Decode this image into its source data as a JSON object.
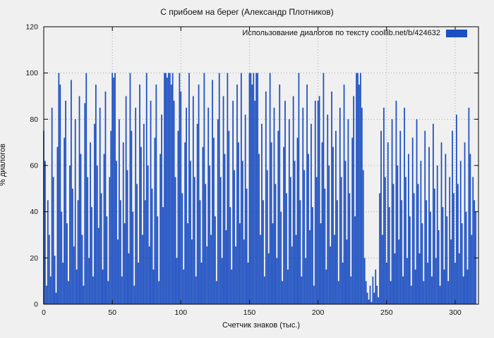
{
  "title": "С прибоем на берег (Александр Плотников)",
  "legend": {
    "label": "Использование диалогов по тексту  coollib.net/b/424632"
  },
  "colors": {
    "background": "#f0f0f0",
    "bar": "#1c4fc1",
    "axis": "#000000",
    "grid": "#9a9a9a"
  },
  "chart_data": {
    "type": "bar",
    "title": "С прибоем на берег (Александр Плотников)",
    "xlabel": "Счетчик знаков (тыс.)",
    "ylabel": "% диалогов",
    "xlim": [
      0,
      317
    ],
    "ylim": [
      0,
      120
    ],
    "x_ticks": [
      0,
      50,
      100,
      150,
      200,
      250,
      300
    ],
    "y_ticks": [
      0,
      20,
      40,
      60,
      80,
      100,
      120
    ],
    "grid": true,
    "legend_position": "top-right-inside",
    "x_start": 0,
    "x_step": 1,
    "values": [
      75,
      62,
      8,
      45,
      30,
      12,
      85,
      55,
      21,
      5,
      68,
      100,
      95,
      40,
      18,
      72,
      88,
      35,
      10,
      60,
      97,
      50,
      25,
      80,
      15,
      45,
      90,
      65,
      30,
      8,
      87,
      100,
      55,
      20,
      70,
      42,
      12,
      78,
      95,
      60,
      33,
      85,
      48,
      15,
      65,
      92,
      38,
      10,
      55,
      75,
      100,
      98,
      100,
      62,
      28,
      80,
      45,
      12,
      70,
      35,
      90,
      58,
      22,
      100,
      75,
      40,
      8,
      85,
      52,
      18,
      95,
      68,
      30,
      78,
      45,
      100,
      60,
      25,
      88,
      50,
      15,
      72,
      95,
      38,
      10,
      65,
      82,
      42,
      100,
      100,
      98,
      100,
      100,
      95,
      100,
      88,
      55,
      20,
      75,
      100,
      92,
      48,
      15,
      70,
      85,
      35,
      100,
      62,
      28,
      90,
      55,
      12,
      78,
      95,
      45,
      18,
      68,
      100,
      52,
      25,
      85,
      60,
      30,
      97,
      72,
      38,
      10,
      80,
      100,
      55,
      20,
      90,
      65,
      32,
      100,
      75,
      42,
      15,
      88,
      58,
      25,
      95,
      70,
      35,
      100,
      62,
      28,
      82,
      50,
      18,
      100,
      100,
      95,
      100,
      88,
      100,
      100,
      65,
      30,
      78,
      45,
      12,
      92,
      58,
      22,
      100,
      70,
      35,
      85,
      52,
      20,
      75,
      95,
      40,
      10,
      68,
      88,
      48,
      15,
      80,
      55,
      25,
      90,
      62,
      30,
      72,
      100,
      45,
      12,
      85,
      58,
      20,
      95,
      65,
      32,
      78,
      42,
      8,
      88,
      55,
      88,
      90,
      35,
      70,
      100,
      50,
      15,
      82,
      60,
      25,
      92,
      68,
      30,
      75,
      45,
      10,
      85,
      55,
      18,
      95,
      62,
      28,
      80,
      48,
      12,
      72,
      90,
      38,
      100,
      100,
      95,
      100,
      85,
      58,
      20,
      10,
      5,
      2,
      8,
      1,
      12,
      5,
      15,
      8,
      3,
      48,
      75,
      30,
      85,
      55,
      18,
      70,
      42,
      10,
      80,
      52,
      22,
      88,
      60,
      28,
      75,
      45,
      12,
      85,
      55,
      20,
      65,
      38,
      8,
      72,
      48,
      15,
      80,
      52,
      22,
      62,
      35,
      10,
      75,
      45,
      18,
      68,
      40,
      12,
      78,
      50,
      20,
      60,
      32,
      8,
      70,
      42,
      15,
      65,
      38,
      10,
      55,
      28,
      75,
      48,
      18,
      82,
      52,
      22,
      62,
      35,
      12,
      70,
      40,
      15,
      85,
      65,
      30,
      55,
      45,
      40
    ]
  }
}
